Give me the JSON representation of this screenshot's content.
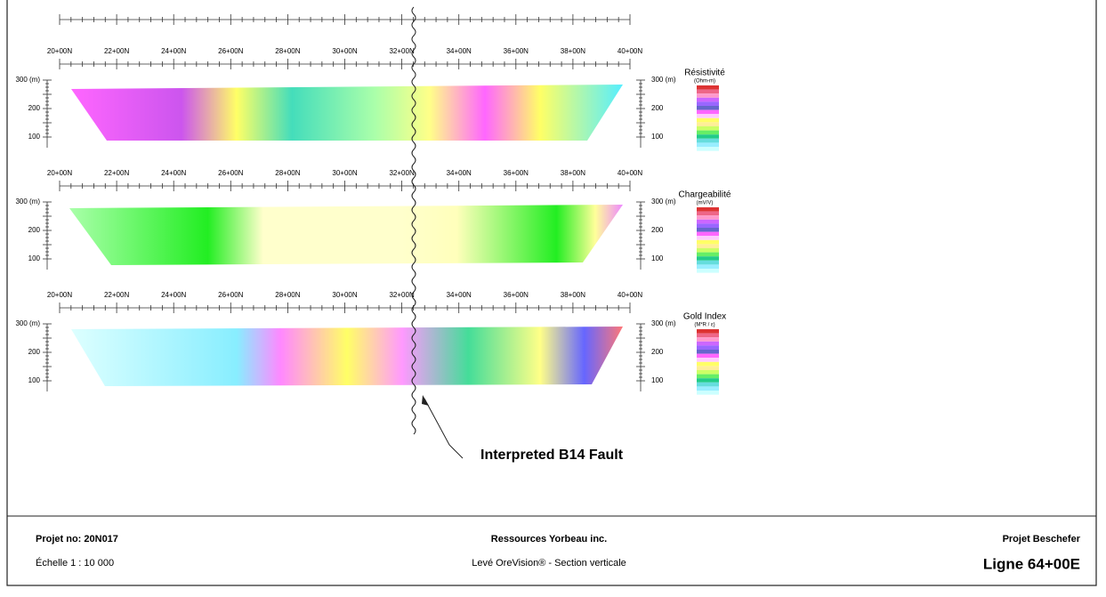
{
  "panels": [
    {
      "x_labels": [
        "20+00N",
        "22+00N",
        "24+00N",
        "26+00N",
        "28+00N",
        "30+00N",
        "32+00N",
        "34+00N",
        "36+00N",
        "38+00N",
        "40+00N"
      ],
      "y_labels_left": [
        "300 (m)",
        "200",
        "100"
      ],
      "y_labels_right": [
        "300 (m)",
        "200",
        "100"
      ],
      "legend": {
        "title": "Résistivité",
        "unit": "(Ohm-m)"
      }
    },
    {
      "x_labels": [
        "20+00N",
        "22+00N",
        "24+00N",
        "26+00N",
        "28+00N",
        "30+00N",
        "32+00N",
        "34+00N",
        "36+00N",
        "38+00N",
        "40+00N"
      ],
      "y_labels_left": [
        "300 (m)",
        "200",
        "100"
      ],
      "y_labels_right": [
        "300 (m)",
        "200",
        "100"
      ],
      "legend": {
        "title": "Chargeabilité",
        "unit": "(mV/V)"
      }
    },
    {
      "x_labels": [
        "20+00N",
        "22+00N",
        "24+00N",
        "26+00N",
        "28+00N",
        "30+00N",
        "32+00N",
        "34+00N",
        "36+00N",
        "38+00N",
        "40+00N"
      ],
      "y_labels_left": [
        "300 (m)",
        "200",
        "100"
      ],
      "y_labels_right": [
        "300 (m)",
        "200",
        "100"
      ],
      "legend": {
        "title": "Gold Index",
        "unit": "(M*R / ε)"
      }
    }
  ],
  "annotation": "Interpreted B14 Fault",
  "footer": {
    "project_no": "Projet no: 20N017",
    "scale": "Échelle 1 : 10 000",
    "company": "Ressources Yorbeau inc.",
    "survey": "Levé OreVision® - Section verticale",
    "project": "Projet Beschefer",
    "line": "Ligne 64+00E"
  }
}
